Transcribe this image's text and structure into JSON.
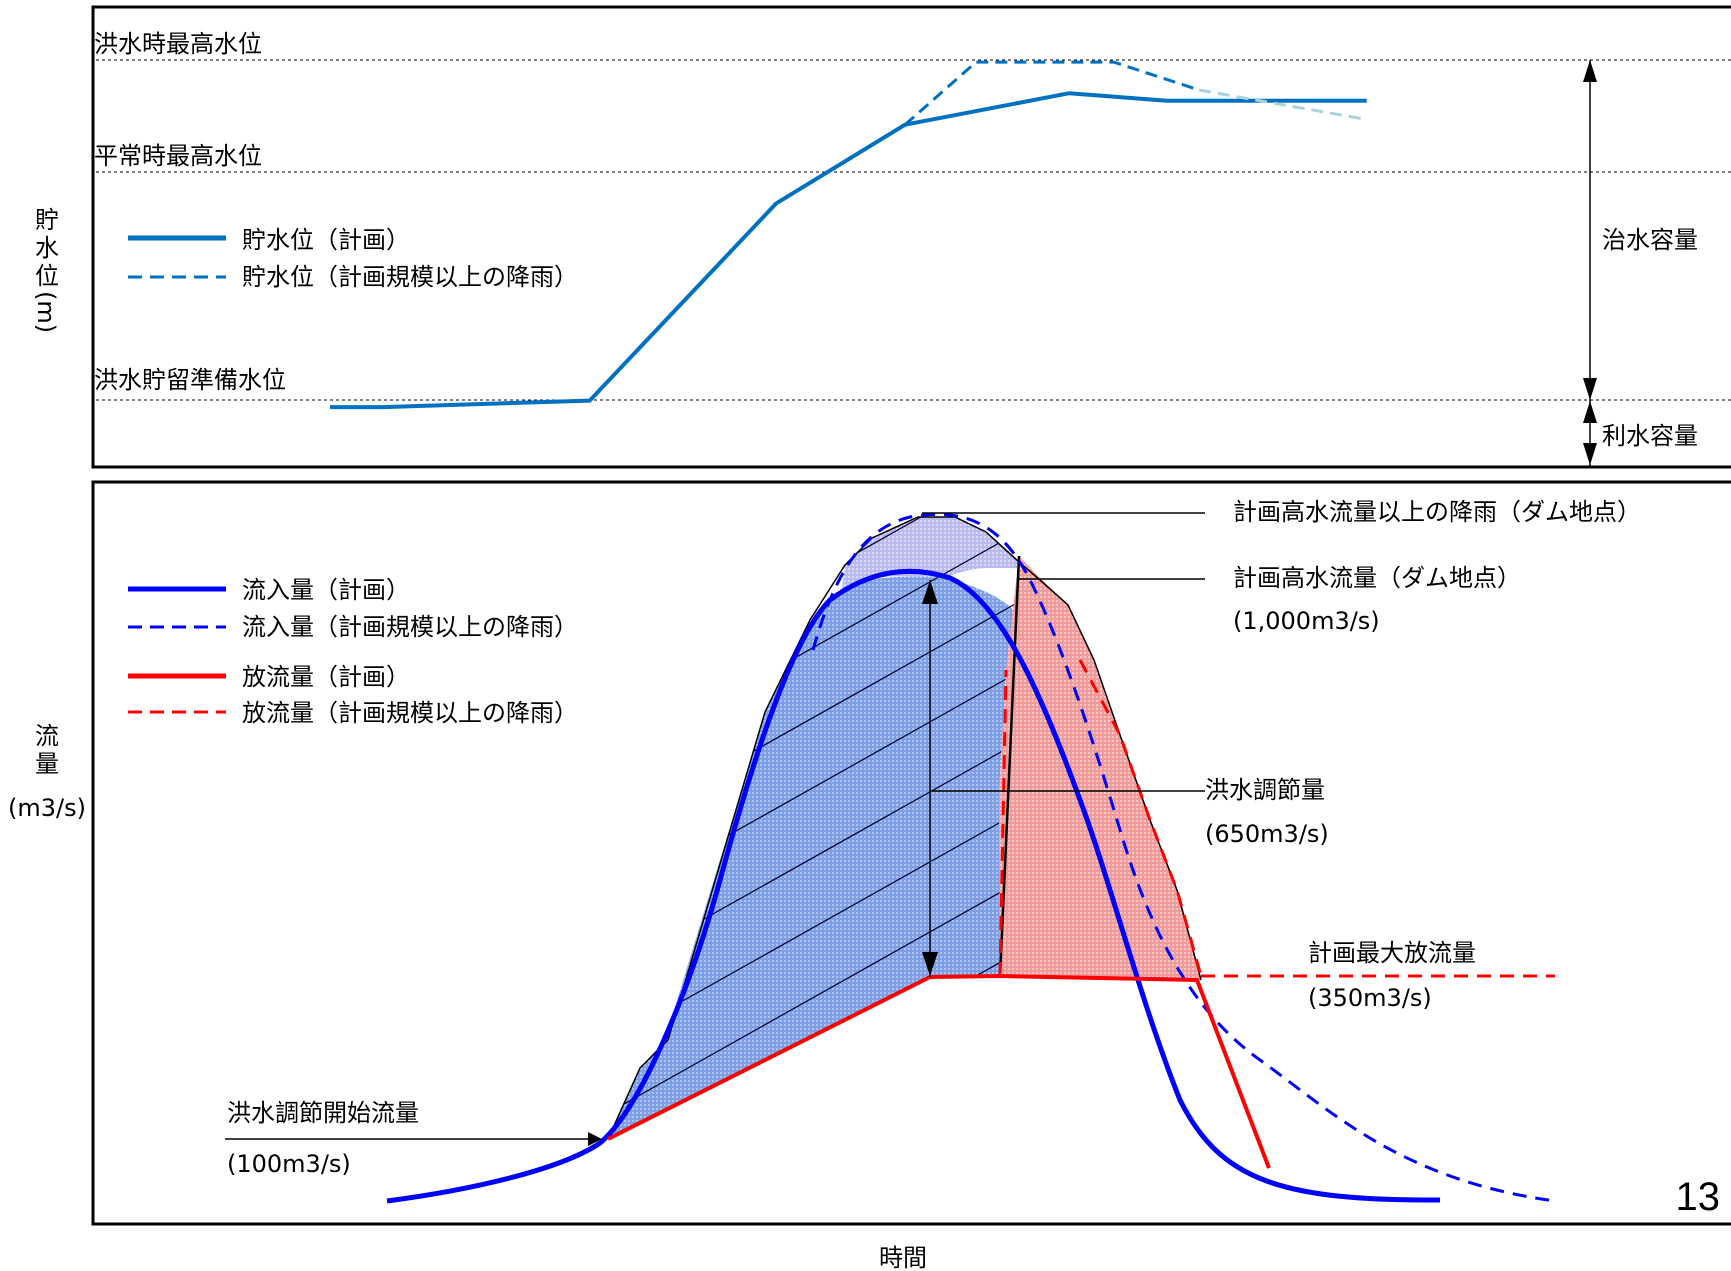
{
  "page_number": "13",
  "colors": {
    "level": "#0070C0",
    "level_dash_light": "#A9D2DC",
    "inflow": "#0000FF",
    "outflow": "#FF0000",
    "fill_blue": "#8EA9E8",
    "fill_red": "#F2A0A0",
    "fill_lavender": "#C5C6F0"
  },
  "x_axis_label": "時間",
  "chart_data": [
    {
      "type": "line",
      "ylabel": "貯水位(m)",
      "ylabel_chars": [
        "貯",
        "水",
        "位",
        "(m)"
      ],
      "reference_levels": [
        "洪水時最高水位",
        "平常時最高水位",
        "洪水貯留準備水位"
      ],
      "capacities": [
        "治水容量",
        "利水容量"
      ],
      "legend": [
        "貯水位（計画）",
        "貯水位（計画規模以上の降雨）"
      ],
      "series": [
        {
          "name": "貯水位（計画）",
          "style": "solid",
          "points": [
            [
              0.0,
              0.024
            ],
            [
              0.048,
              0.024
            ],
            [
              0.234,
              0.044
            ],
            [
              0.402,
              0.645
            ],
            [
              0.518,
              0.885
            ],
            [
              0.666,
              0.981
            ],
            [
              0.754,
              0.958
            ],
            [
              0.934,
              0.958
            ]
          ]
        },
        {
          "name": "貯水位（計画規模以上の降雨）",
          "style": "dashed",
          "points": [
            [
              0.518,
              0.885
            ],
            [
              0.582,
              1.076
            ],
            [
              0.706,
              1.076
            ],
            [
              0.783,
              0.991
            ],
            [
              0.934,
              0.901
            ]
          ]
        }
      ]
    },
    {
      "type": "area",
      "ylabel": "流量(m3/s)",
      "ylabel_chars": [
        "流",
        "量",
        "(m3/s)"
      ],
      "legend": [
        "流入量（計画）",
        "流入量（計画規模以上の降雨）",
        "放流量（計画）",
        "放流量（計画規模以上の降雨）"
      ],
      "values": {
        "plan_peak_inflow": 1000,
        "flood_control_amount": 650,
        "plan_max_outflow": 350,
        "control_start_flow": 100
      },
      "annotations": [
        {
          "text": "計画高水流量以上の降雨（ダム地点）"
        },
        {
          "text": "計画高水流量（ダム地点）",
          "sub": "(1,000m3/s)"
        },
        {
          "text": "洪水調節量",
          "sub": "(650m3/s)"
        },
        {
          "text": "計画最大放流量",
          "sub": "(350m3/s)"
        },
        {
          "text": "洪水調節開始流量",
          "sub": "(100m3/s)"
        }
      ]
    }
  ]
}
